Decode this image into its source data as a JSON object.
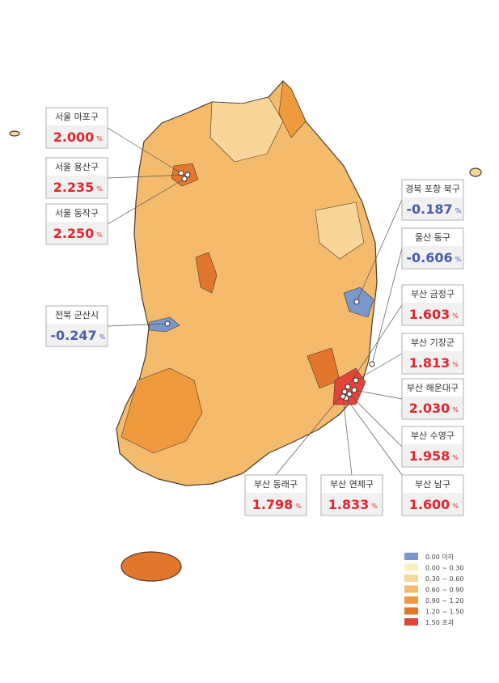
{
  "unit": "%",
  "callouts": [
    {
      "region": "서울 마포구",
      "value": "2.000"
    },
    {
      "region": "서울 용산구",
      "value": "2.235"
    },
    {
      "region": "서울 동작구",
      "value": "2.250"
    },
    {
      "region": "전북 군산시",
      "value": "-0.247"
    },
    {
      "region": "경북 포항 북구",
      "value": "-0.187"
    },
    {
      "region": "울산 동구",
      "value": "-0.606"
    },
    {
      "region": "부산 금정구",
      "value": "1.603"
    },
    {
      "region": "부산 기장군",
      "value": "1.813"
    },
    {
      "region": "부산 해운대구",
      "value": "2.030"
    },
    {
      "region": "부산 수영구",
      "value": "1.958"
    },
    {
      "region": "부산 남구",
      "value": "1.600"
    },
    {
      "region": "부산 동래구",
      "value": "1.798"
    },
    {
      "region": "부산 연제구",
      "value": "1.833"
    }
  ],
  "legend": [
    {
      "label": "0.00 이하",
      "color": "#7b96c8"
    },
    {
      "label": "0.00 ~ 0.30",
      "color": "#fbefc0"
    },
    {
      "label": "0.30 ~ 0.60",
      "color": "#f8d69a"
    },
    {
      "label": "0.60 ~ 0.90",
      "color": "#f5bb6c"
    },
    {
      "label": "0.90 ~ 1.20",
      "color": "#f09a3e"
    },
    {
      "label": "1.20 ~ 1.50",
      "color": "#e2762c"
    },
    {
      "label": "1.50 초과",
      "color": "#e2433a"
    }
  ]
}
